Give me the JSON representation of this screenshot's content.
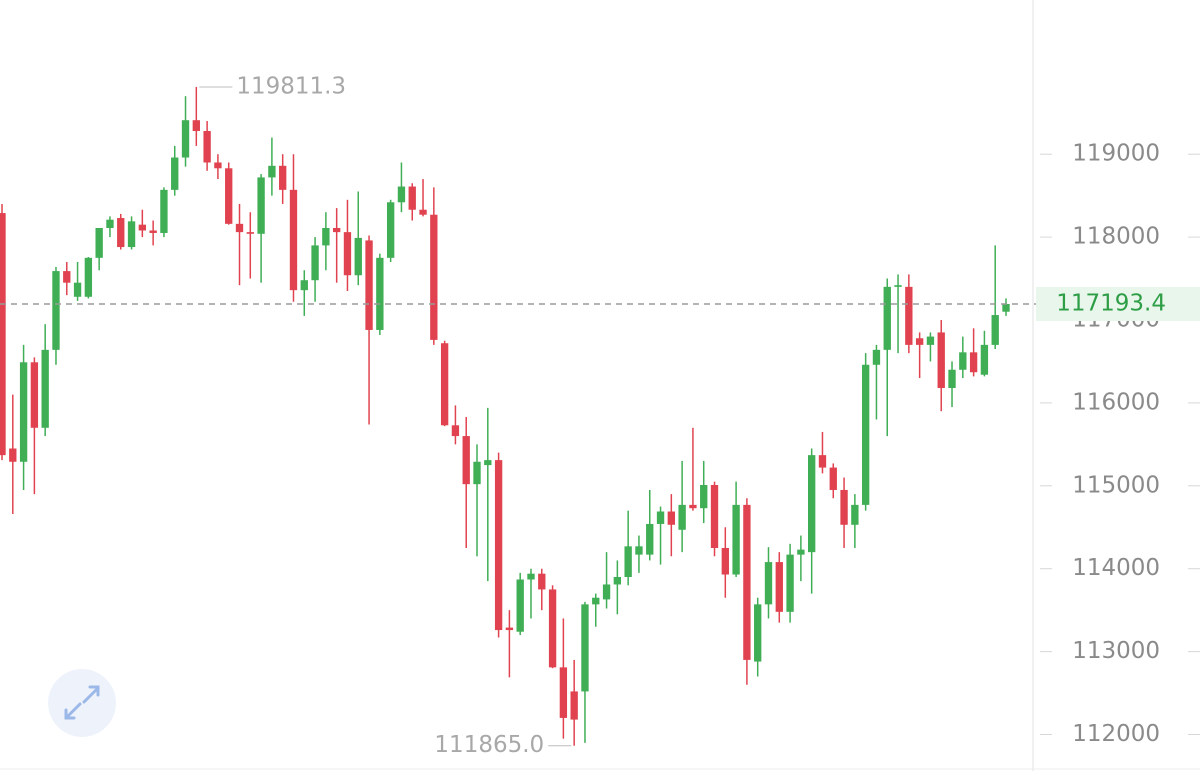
{
  "chart_data": {
    "type": "candlestick",
    "up_color": "#3fae55",
    "down_color": "#e0434f",
    "ylim": [
      111560,
      120860
    ],
    "yticks": [
      112000,
      113000,
      114000,
      115000,
      116000,
      117000,
      118000,
      119000
    ],
    "last_price": 117193.4,
    "annotations": [
      {
        "value": 119811.3,
        "label": "119811.3"
      },
      {
        "value": 111865.0,
        "label": "111865.0"
      }
    ],
    "open": [
      118290,
      115450,
      115290,
      116490,
      115700,
      116640,
      117590,
      117280,
      117280,
      117750,
      118110,
      118230,
      117880,
      118150,
      118080,
      118050,
      118570,
      118960,
      119410,
      119280,
      118900,
      118830,
      118160,
      118060,
      118040,
      118720,
      118860,
      118570,
      117360,
      117480,
      117900,
      118110,
      118060,
      117540,
      117960,
      116880,
      117750,
      118420,
      118610,
      118330,
      118270,
      116720,
      115730,
      115600,
      115020,
      115250,
      115310,
      113290,
      113240,
      113870,
      113940,
      113750,
      112810,
      112520,
      112520,
      113570,
      113630,
      113810,
      113900,
      114170,
      114170,
      114540,
      114690,
      114470,
      114770,
      114730,
      115010,
      114250,
      113930,
      114770,
      112880,
      113570,
      114080,
      113480,
      114170,
      114200,
      115370,
      115220,
      114950,
      114530,
      114770,
      116460,
      116640,
      117400,
      117400,
      116780,
      116700,
      116850,
      116180,
      116400,
      116610,
      116340,
      116700,
      117100
    ],
    "high": [
      118400,
      116100,
      116700,
      116550,
      116950,
      117640,
      117700,
      117700,
      117760,
      118110,
      118250,
      118280,
      118250,
      118330,
      118200,
      118600,
      119100,
      119700,
      119811.3,
      119400,
      119000,
      118900,
      118400,
      118300,
      118760,
      119200,
      119000,
      119000,
      117600,
      118000,
      118300,
      118350,
      118450,
      118550,
      118020,
      117800,
      118450,
      118900,
      118650,
      118700,
      118600,
      116750,
      115970,
      115830,
      115500,
      115940,
      115400,
      113500,
      113950,
      114000,
      114000,
      113800,
      113400,
      112900,
      113600,
      113700,
      114200,
      114100,
      114700,
      114400,
      114950,
      114750,
      114900,
      115300,
      115700,
      115300,
      115050,
      114500,
      115050,
      114850,
      113650,
      114260,
      114200,
      114300,
      114400,
      115450,
      115650,
      115270,
      115100,
      114900,
      116600,
      116700,
      117500,
      117550,
      117550,
      116850,
      116850,
      117000,
      116500,
      116800,
      116900,
      116870,
      117900,
      117260
    ],
    "low": [
      115310,
      114660,
      114950,
      114900,
      115600,
      116460,
      117300,
      117230,
      117260,
      117600,
      118000,
      117850,
      117850,
      118000,
      117900,
      118000,
      118500,
      118850,
      119100,
      118800,
      118700,
      118150,
      117420,
      117500,
      117450,
      118500,
      118400,
      117220,
      117050,
      117220,
      117600,
      117450,
      117350,
      117420,
      115740,
      116820,
      117700,
      118300,
      118200,
      118250,
      116700,
      115720,
      115500,
      114250,
      114150,
      113850,
      113170,
      112690,
      113200,
      113400,
      113500,
      112800,
      111950,
      111865,
      111900,
      113300,
      113520,
      113450,
      113800,
      113950,
      114100,
      114050,
      114150,
      114200,
      114700,
      114550,
      114150,
      113650,
      113900,
      112600,
      112700,
      113400,
      113350,
      113350,
      113850,
      113700,
      115150,
      114850,
      114250,
      114250,
      114700,
      115800,
      115600,
      116600,
      116600,
      116300,
      116500,
      115900,
      115950,
      116300,
      116320,
      116320,
      116650,
      117050
    ],
    "close": [
      115370,
      115290,
      116490,
      115700,
      116640,
      117590,
      117450,
      117450,
      117750,
      118110,
      118210,
      117880,
      118190,
      118080,
      118050,
      118570,
      118960,
      119410,
      119280,
      118900,
      118830,
      118160,
      118060,
      118040,
      118720,
      118860,
      118570,
      117360,
      117480,
      117900,
      118110,
      118060,
      117540,
      117990,
      116880,
      117750,
      118420,
      118610,
      118330,
      118270,
      116760,
      115730,
      115600,
      115020,
      115290,
      115310,
      113260,
      113260,
      113870,
      113940,
      113750,
      112810,
      112200,
      112180,
      113570,
      113650,
      113810,
      113900,
      114270,
      114270,
      114540,
      114690,
      114530,
      114770,
      114730,
      115010,
      114250,
      113930,
      114770,
      112900,
      113570,
      114080,
      113480,
      114170,
      114230,
      115370,
      115220,
      114950,
      114530,
      114770,
      116460,
      116640,
      117400,
      117420,
      116700,
      116700,
      116800,
      116180,
      116400,
      116610,
      116370,
      116700,
      117060,
      117193.4
    ]
  }
}
